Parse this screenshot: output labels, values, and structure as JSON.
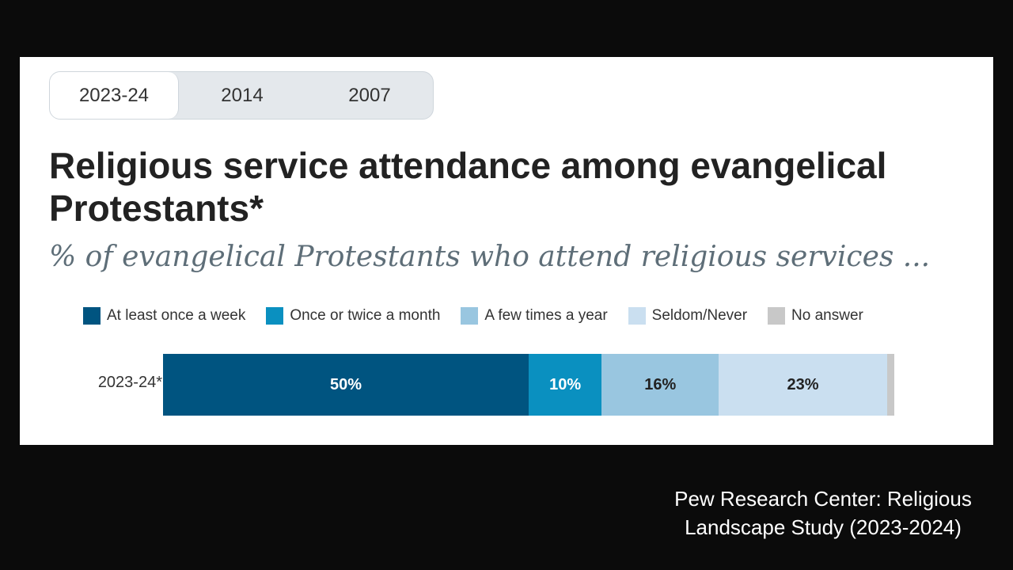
{
  "tabs": [
    {
      "label": "2023-24",
      "active": true
    },
    {
      "label": "2014",
      "active": false
    },
    {
      "label": "2007",
      "active": false
    }
  ],
  "caption": {
    "line1": "Pew Research Center: Religious",
    "line2": "Landscape Study (2023-2024)"
  },
  "chart_data": {
    "type": "bar",
    "orientation": "horizontal-stacked",
    "title": "Religious service attendance among evangelical Protestants*",
    "subtitle": "% of evangelical Protestants who attend religious services ...",
    "categories": [
      "2023-24*"
    ],
    "series": [
      {
        "name": "At least once a week",
        "values": [
          50
        ],
        "label": "50%",
        "color": "#005480"
      },
      {
        "name": "Once or twice a month",
        "values": [
          10
        ],
        "label": "10%",
        "color": "#0a90c0"
      },
      {
        "name": "A few times a year",
        "values": [
          16
        ],
        "label": "16%",
        "color": "#99c6e0"
      },
      {
        "name": "Seldom/Never",
        "values": [
          23
        ],
        "label": "23%",
        "color": "#cadff0"
      },
      {
        "name": "No answer",
        "values": [
          1
        ],
        "label": "",
        "color": "#c8c8c8"
      }
    ],
    "xlim": [
      0,
      100
    ],
    "legend_position": "top"
  }
}
